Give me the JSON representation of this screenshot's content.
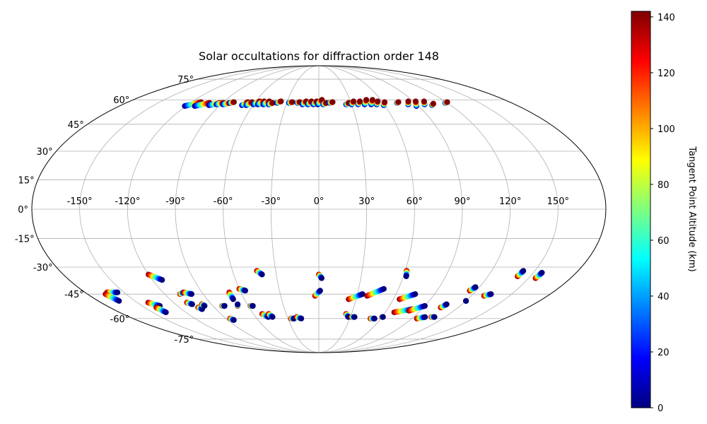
{
  "chart_data": {
    "type": "scatter",
    "projection": "mollweide",
    "title": "Solar occultations for diffraction order 148",
    "grid": true,
    "lon_ticks": [
      -150,
      -120,
      -90,
      -60,
      -30,
      0,
      30,
      60,
      90,
      120,
      150
    ],
    "lon_tick_labels": [
      "-150°",
      "-120°",
      "-90°",
      "-60°",
      "-30°",
      "0°",
      "30°",
      "60°",
      "90°",
      "120°",
      "150°"
    ],
    "lat_ticks": [
      -75,
      -60,
      -45,
      -30,
      -15,
      0,
      15,
      30,
      45,
      60,
      75
    ],
    "lat_tick_labels": [
      "-75°",
      "-60°",
      "-45°",
      "-30°",
      "-15°",
      "0°",
      "15°",
      "30°",
      "45°",
      "60°",
      "75°"
    ],
    "colorbar": {
      "label": "Tangent Point Altitude (km)",
      "min": 0,
      "max": 142,
      "ticks": [
        0,
        20,
        40,
        60,
        80,
        100,
        120,
        140
      ],
      "colormap": "jet",
      "colormap_stops": [
        "#00007f",
        "#0000ff",
        "#007fff",
        "#00ffff",
        "#7fff7f",
        "#ffff00",
        "#ff7f00",
        "#ff0000",
        "#7f0000"
      ]
    },
    "north_tracks": [
      {
        "lon": -121,
        "lat": 56,
        "dlon": 10,
        "dlat": 2.5
      },
      {
        "lon": -112,
        "lat": 56,
        "dlon": 10,
        "dlat": 2
      },
      {
        "lon": -100,
        "lat": 56.5,
        "dlon": 8,
        "dlat": 1.5
      },
      {
        "lon": -94,
        "lat": 57,
        "dlon": 5,
        "dlat": 1
      },
      {
        "lon": -88,
        "lat": 57,
        "dlon": 5,
        "dlat": 1
      },
      {
        "lon": -83,
        "lat": 58,
        "dlon": 3,
        "dlat": 0.5
      },
      {
        "lon": -70,
        "lat": 56.5,
        "dlon": 3,
        "dlat": 2
      },
      {
        "lon": -66,
        "lat": 56.5,
        "dlon": 3,
        "dlat": 2
      },
      {
        "lon": -60,
        "lat": 57,
        "dlon": 4,
        "dlat": 2
      },
      {
        "lon": -56,
        "lat": 57,
        "dlon": 4,
        "dlat": 2
      },
      {
        "lon": -51,
        "lat": 57,
        "dlon": 4,
        "dlat": 2
      },
      {
        "lon": -46,
        "lat": 57,
        "dlon": 3,
        "dlat": 1
      },
      {
        "lon": -39,
        "lat": 58,
        "dlon": 3,
        "dlat": 1
      },
      {
        "lon": -28,
        "lat": 58,
        "dlon": 3,
        "dlat": 0.5
      },
      {
        "lon": -20,
        "lat": 58,
        "dlon": 2,
        "dlat": 0.5
      },
      {
        "lon": -15,
        "lat": 57,
        "dlon": 3,
        "dlat": 2
      },
      {
        "lon": -10,
        "lat": 57,
        "dlon": 3,
        "dlat": 2
      },
      {
        "lon": -5,
        "lat": 57,
        "dlon": 3,
        "dlat": 2
      },
      {
        "lon": -1,
        "lat": 57,
        "dlon": 4,
        "dlat": 3
      },
      {
        "lon": 4,
        "lat": 57,
        "dlon": 3,
        "dlat": 1
      },
      {
        "lon": 10,
        "lat": 58,
        "dlon": 3,
        "dlat": 0.5
      },
      {
        "lon": 25,
        "lat": 57,
        "dlon": 3,
        "dlat": 1
      },
      {
        "lon": 30,
        "lat": 57,
        "dlon": 3,
        "dlat": 2
      },
      {
        "lon": 36,
        "lat": 57,
        "dlon": 3,
        "dlat": 2
      },
      {
        "lon": 42,
        "lat": 57,
        "dlon": 4,
        "dlat": 3
      },
      {
        "lon": 48,
        "lat": 57,
        "dlon": 4,
        "dlat": 3
      },
      {
        "lon": 53,
        "lat": 57,
        "dlon": 3,
        "dlat": 2
      },
      {
        "lon": 59,
        "lat": 56.5,
        "dlon": 3,
        "dlat": 2
      },
      {
        "lon": 73,
        "lat": 58,
        "dlon": 2,
        "dlat": 0.5
      },
      {
        "lon": 82,
        "lat": 57,
        "dlon": 3,
        "dlat": 2
      },
      {
        "lon": 88,
        "lat": 56,
        "dlon": 4,
        "dlat": 3
      },
      {
        "lon": 97,
        "lat": 57,
        "dlon": 3,
        "dlat": 2
      },
      {
        "lon": 103,
        "lat": 56.5,
        "dlon": 3,
        "dlat": 1
      },
      {
        "lon": 118,
        "lat": 58,
        "dlon": 3,
        "dlat": 0.5
      }
    ],
    "south_tracks": [
      {
        "lon": -163,
        "lat": -44,
        "dlon": 8,
        "dlat": 0
      },
      {
        "lon": -166,
        "lat": -45,
        "dlon": 3,
        "dlat": -4
      },
      {
        "lon": -141,
        "lat": -50,
        "dlon": 6,
        "dlat": -2
      },
      {
        "lon": -140,
        "lat": -53,
        "dlon": 2,
        "dlat": -3
      },
      {
        "lon": -120,
        "lat": -34,
        "dlon": 7,
        "dlat": -3
      },
      {
        "lon": -109,
        "lat": -50,
        "dlon": 3,
        "dlat": -1
      },
      {
        "lon": -108,
        "lat": -45,
        "dlon": 4,
        "dlat": 1
      },
      {
        "lon": -104,
        "lat": -44,
        "dlon": 5,
        "dlat": -1
      },
      {
        "lon": -104,
        "lat": -53,
        "dlon": 2,
        "dlat": -1
      },
      {
        "lon": -98,
        "lat": -51,
        "dlon": 1,
        "dlat": -1
      },
      {
        "lon": -86,
        "lat": -60,
        "dlon": 2,
        "dlat": -1
      },
      {
        "lon": -82,
        "lat": -52,
        "dlon": 2,
        "dlat": 0
      },
      {
        "lon": -69,
        "lat": -44,
        "dlon": 0,
        "dlat": -4
      },
      {
        "lon": -69,
        "lat": -52,
        "dlon": 1,
        "dlat": 1
      },
      {
        "lon": -60,
        "lat": -42,
        "dlon": 4,
        "dlat": -1
      },
      {
        "lon": -58,
        "lat": -52,
        "dlon": 2,
        "dlat": 0
      },
      {
        "lon": -52,
        "lat": -57,
        "dlon": 4,
        "dlat": -2
      },
      {
        "lon": -46,
        "lat": -57,
        "dlon": 2,
        "dlat": -2
      },
      {
        "lon": -43,
        "lat": -32,
        "dlon": 3,
        "dlat": -2
      },
      {
        "lon": -27,
        "lat": -60,
        "dlon": 3,
        "dlat": 0
      },
      {
        "lon": -21,
        "lat": -59,
        "dlon": 4,
        "dlat": -1
      },
      {
        "lon": -3,
        "lat": -46,
        "dlon": 4,
        "dlat": 3
      },
      {
        "lon": 0,
        "lat": -34,
        "dlon": 2,
        "dlat": -2
      },
      {
        "lon": 24,
        "lat": -48,
        "dlon": 10,
        "dlat": 3
      },
      {
        "lon": 25,
        "lat": -57,
        "dlon": 3,
        "dlat": -2
      },
      {
        "lon": 31,
        "lat": -59,
        "dlon": 3,
        "dlat": 0
      },
      {
        "lon": 38,
        "lat": -46,
        "dlon": 11,
        "dlat": 4
      },
      {
        "lon": 50,
        "lat": -60,
        "dlon": 4,
        "dlat": 0
      },
      {
        "lon": 61,
        "lat": -32,
        "dlon": 1,
        "dlat": -3
      },
      {
        "lon": 60,
        "lat": -59,
        "dlon": 1,
        "dlat": 0
      },
      {
        "lon": 65,
        "lat": -48,
        "dlon": 10,
        "dlat": 3
      },
      {
        "lon": 68,
        "lat": -56,
        "dlon": 14,
        "dlat": 2
      },
      {
        "lon": 80,
        "lat": -55,
        "dlon": 10,
        "dlat": 3
      },
      {
        "lon": 95,
        "lat": -60,
        "dlon": 6,
        "dlat": 1
      },
      {
        "lon": 105,
        "lat": -53,
        "dlon": 2,
        "dlat": 2
      },
      {
        "lon": 107,
        "lat": -59,
        "dlon": 3,
        "dlat": 0
      },
      {
        "lon": 115,
        "lat": -43,
        "dlon": 2,
        "dlat": 2
      },
      {
        "lon": 120,
        "lat": -49,
        "dlon": 0,
        "dlat": 0
      },
      {
        "lon": 130,
        "lat": -46,
        "dlon": 4,
        "dlat": 1
      },
      {
        "lon": 141,
        "lat": -35,
        "dlon": 1,
        "dlat": 3
      },
      {
        "lon": 155,
        "lat": -36,
        "dlon": 1,
        "dlat": 3
      }
    ],
    "track_point_count": 14
  }
}
